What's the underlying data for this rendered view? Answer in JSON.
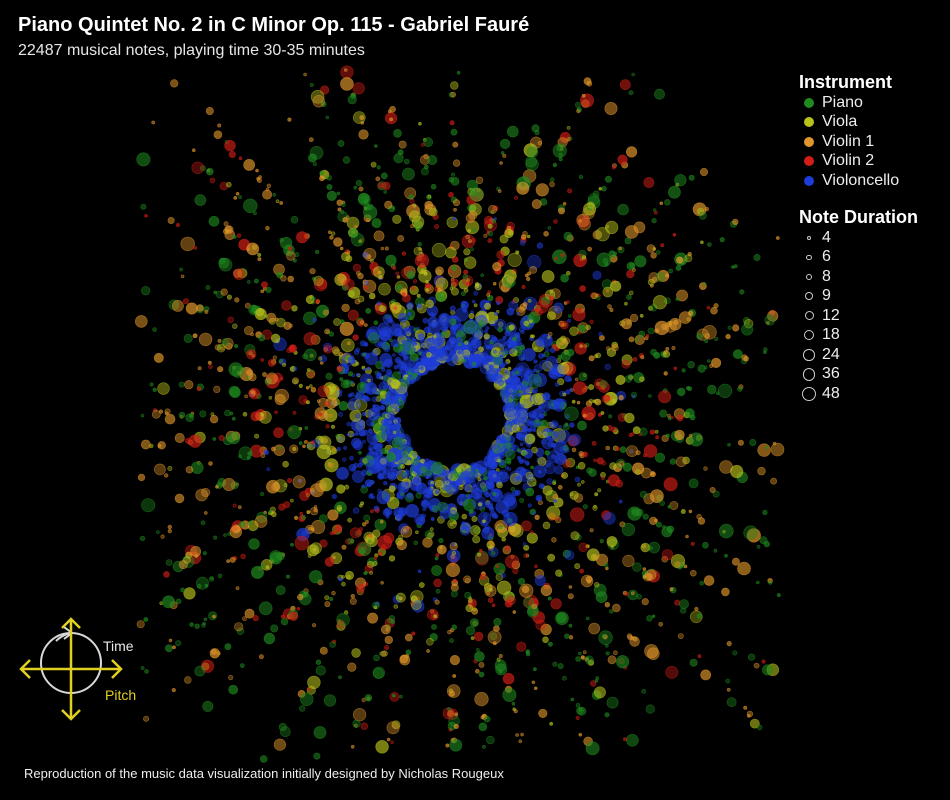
{
  "title": "Piano Quintet No. 2 in C Minor Op. 115 - Gabriel Fauré",
  "subtitle": "22487 musical notes, playing time 30-35 minutes",
  "credit": "Reproduction of the music data visualization initially designed by Nicholas Rougeux",
  "colors": {
    "background": "#000000",
    "compass": "#e0d020",
    "compass_circle": "#d8d8d8"
  },
  "compass": {
    "time_label": "Time",
    "pitch_label": "Pitch"
  },
  "chart_data": {
    "type": "scatter",
    "layout": "radial",
    "angular_axis": "Time",
    "radial_axis": "Pitch",
    "total_notes": 22487,
    "color_legend": {
      "title": "Instrument",
      "entries": [
        {
          "name": "Piano",
          "color": "#1f8a1f"
        },
        {
          "name": "Viola",
          "color": "#b8c21c"
        },
        {
          "name": "Violin 1",
          "color": "#e0962a"
        },
        {
          "name": "Violin 2",
          "color": "#d21e16"
        },
        {
          "name": "Violoncello",
          "color": "#1e3cd8"
        }
      ]
    },
    "size_legend": {
      "title": "Note Duration",
      "values": [
        4,
        6,
        8,
        9,
        12,
        18,
        24,
        36,
        48
      ]
    }
  }
}
